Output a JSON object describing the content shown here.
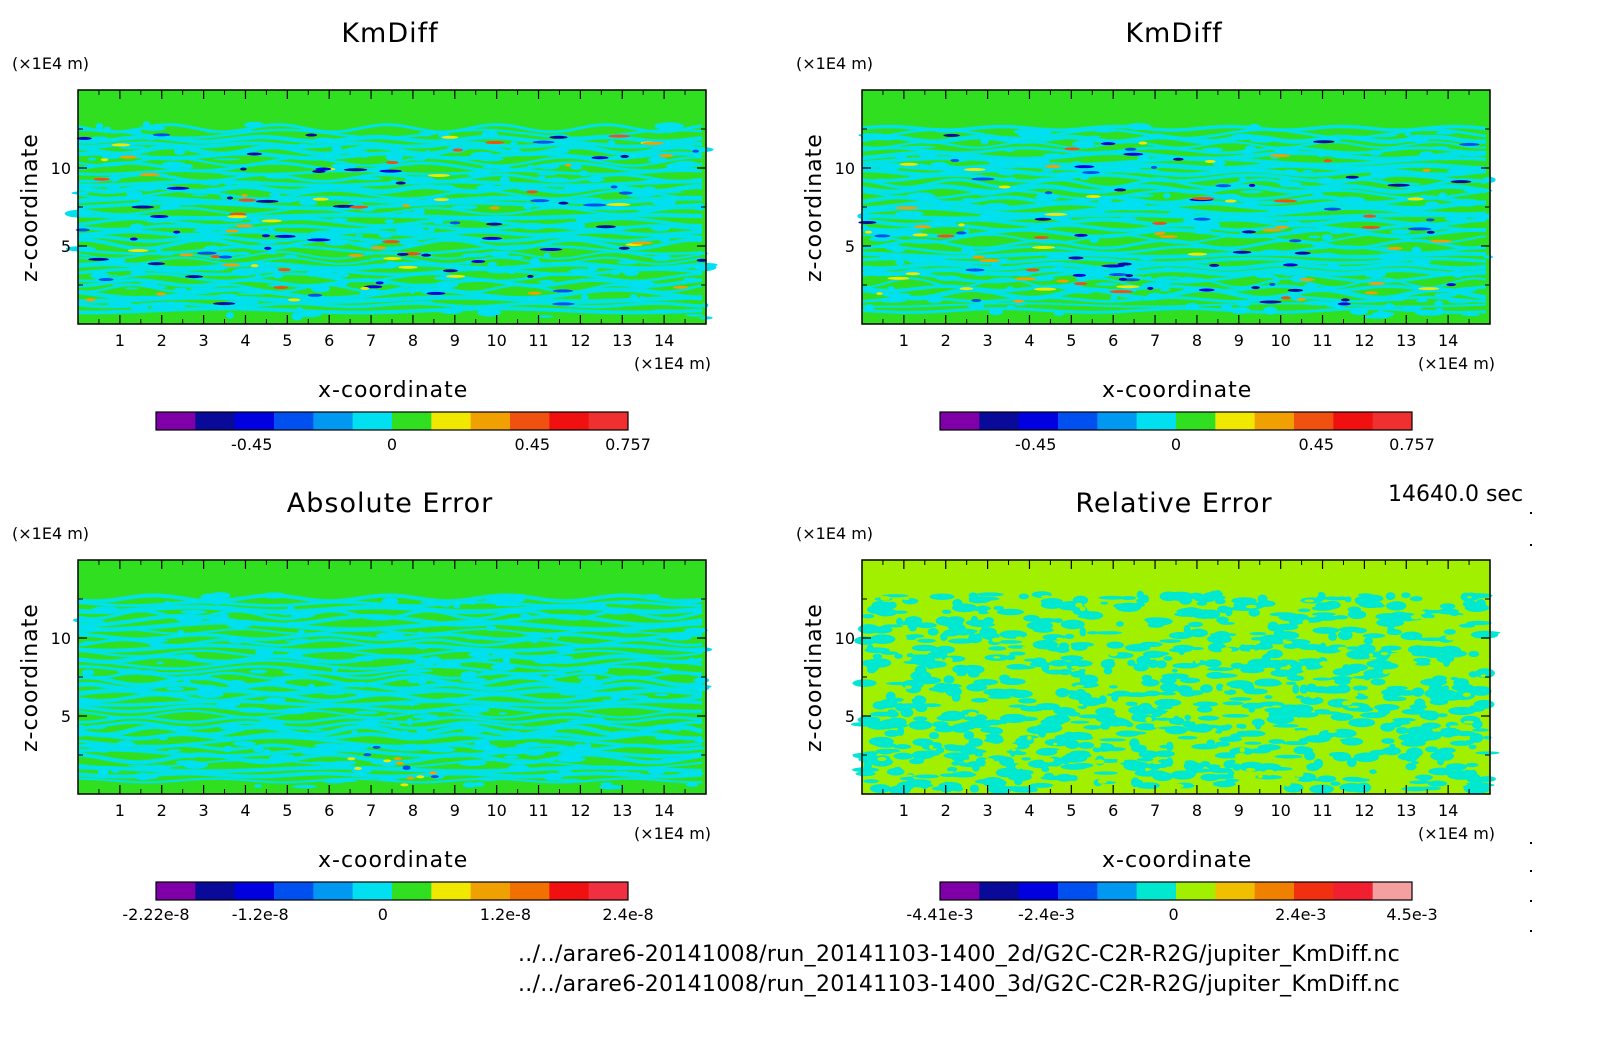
{
  "chart_data": [
    {
      "type": "heatmap",
      "title": "KmDiff",
      "xlabel": "x-coordinate",
      "ylabel": "z-coordinate",
      "x_unit": "(×1E4 m)",
      "y_unit": "(×1E4 m)",
      "xlim": [
        0,
        15
      ],
      "ylim": [
        0,
        15
      ],
      "x_ticks": [
        1,
        2,
        3,
        4,
        5,
        6,
        7,
        8,
        9,
        10,
        11,
        12,
        13,
        14
      ],
      "y_ticks": [
        5,
        10
      ],
      "colorbar": {
        "colors": [
          "#7f00a8",
          "#0a0a9a",
          "#0000e0",
          "#0050f0",
          "#0098f0",
          "#00e0f0",
          "#30e020",
          "#f0e800",
          "#f0a000",
          "#f05010",
          "#f01010",
          "#f03030"
        ],
        "tick_labels": [
          "-0.45",
          "0",
          "0.45",
          "0.757"
        ],
        "tick_values": [
          -0.45,
          0,
          0.45,
          0.757
        ],
        "range": [
          -0.757,
          0.757
        ]
      }
    },
    {
      "type": "heatmap",
      "title": "KmDiff",
      "xlabel": "x-coordinate",
      "ylabel": "z-coordinate",
      "x_unit": "(×1E4 m)",
      "y_unit": "(×1E4 m)",
      "xlim": [
        0,
        15
      ],
      "ylim": [
        0,
        15
      ],
      "x_ticks": [
        1,
        2,
        3,
        4,
        5,
        6,
        7,
        8,
        9,
        10,
        11,
        12,
        13,
        14
      ],
      "y_ticks": [
        5,
        10
      ],
      "colorbar": {
        "colors": [
          "#7f00a8",
          "#0a0a9a",
          "#0000e0",
          "#0050f0",
          "#0098f0",
          "#00e0f0",
          "#30e020",
          "#f0e800",
          "#f0a000",
          "#f05010",
          "#f01010",
          "#f03030"
        ],
        "tick_labels": [
          "-0.45",
          "0",
          "0.45",
          "0.757"
        ],
        "tick_values": [
          -0.45,
          0,
          0.45,
          0.757
        ],
        "range": [
          -0.757,
          0.757
        ]
      }
    },
    {
      "type": "heatmap",
      "title": "Absolute Error",
      "xlabel": "x-coordinate",
      "ylabel": "z-coordinate",
      "x_unit": "(×1E4 m)",
      "y_unit": "(×1E4 m)",
      "xlim": [
        0,
        15
      ],
      "ylim": [
        0,
        15
      ],
      "x_ticks": [
        1,
        2,
        3,
        4,
        5,
        6,
        7,
        8,
        9,
        10,
        11,
        12,
        13,
        14
      ],
      "y_ticks": [
        5,
        10
      ],
      "colorbar": {
        "colors": [
          "#7f00a8",
          "#0a0a9a",
          "#0000e0",
          "#0050f0",
          "#0098f0",
          "#00e0f0",
          "#30e020",
          "#f0e800",
          "#f0a000",
          "#f07000",
          "#f01010",
          "#f03040"
        ],
        "tick_labels": [
          "-2.22e-8",
          "-1.2e-8",
          "0",
          "1.2e-8",
          "2.4e-8"
        ],
        "tick_values": [
          -2.22e-08,
          -1.2e-08,
          0,
          1.2e-08,
          2.4e-08
        ],
        "range": [
          -2.22e-08,
          2.4e-08
        ]
      }
    },
    {
      "type": "heatmap",
      "title": "Relative Error",
      "xlabel": "x-coordinate",
      "ylabel": "z-coordinate",
      "x_unit": "(×1E4 m)",
      "y_unit": "(×1E4 m)",
      "xlim": [
        0,
        15
      ],
      "ylim": [
        0,
        15
      ],
      "x_ticks": [
        1,
        2,
        3,
        4,
        5,
        6,
        7,
        8,
        9,
        10,
        11,
        12,
        13,
        14
      ],
      "y_ticks": [
        5,
        10
      ],
      "colorbar": {
        "colors": [
          "#7f00a8",
          "#0a0a9a",
          "#0000e0",
          "#0050f0",
          "#0098f0",
          "#00e8d0",
          "#a0f000",
          "#f0c000",
          "#f08000",
          "#f03010",
          "#f02030",
          "#f4a0a0"
        ],
        "tick_labels": [
          "-4.41e-3",
          "-2.4e-3",
          "0",
          "2.4e-3",
          "4.5e-3"
        ],
        "tick_values": [
          -0.00441,
          -0.0024,
          0,
          0.0024,
          0.0045
        ],
        "range": [
          -0.00441,
          0.0045
        ]
      }
    }
  ],
  "time_label": "14640.0 sec",
  "file_paths": [
    "../../arare6-20141008/run_20141103-1400_2d/G2C-C2R-R2G/jupiter_KmDiff.nc",
    "../../arare6-20141008/run_20141103-1400_3d/G2C-C2R-R2G/jupiter_KmDiff.nc"
  ]
}
